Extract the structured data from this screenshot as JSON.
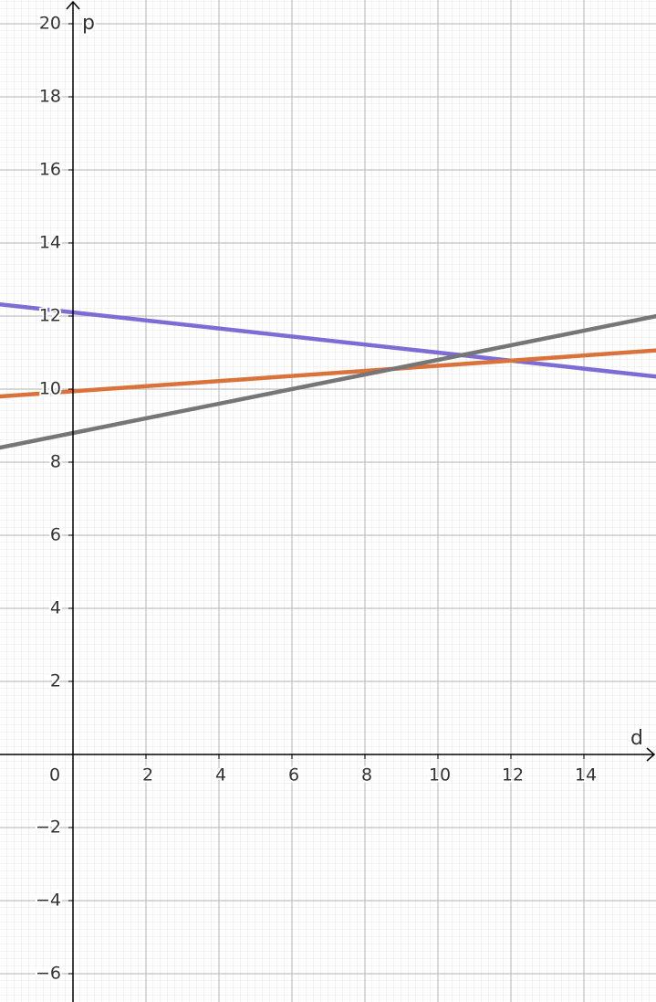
{
  "chart_data": {
    "type": "line",
    "x_label": "d",
    "y_label": "p",
    "xlim": [
      -2,
      15.975
    ],
    "ylim": [
      -6.775,
      20.65
    ],
    "xticks": [
      0,
      2,
      4,
      6,
      8,
      10,
      12,
      14
    ],
    "yticks": [
      {
        "value": -6,
        "label": "−6"
      },
      {
        "value": -4,
        "label": "−4"
      },
      {
        "value": -2,
        "label": "−2"
      },
      2,
      4,
      6,
      8,
      10,
      12,
      14,
      16,
      18,
      20
    ],
    "grid": true,
    "series": [
      {
        "color": "#7d6bd6",
        "x": [
          -2,
          16
        ],
        "values": [
          12.32,
          10.34
        ]
      },
      {
        "color": "#d9733b",
        "x": [
          -2,
          16
        ],
        "values": [
          9.8,
          11.06
        ]
      },
      {
        "color": "#767676",
        "x": [
          -2,
          16
        ],
        "values": [
          8.4,
          12.0
        ]
      }
    ]
  }
}
